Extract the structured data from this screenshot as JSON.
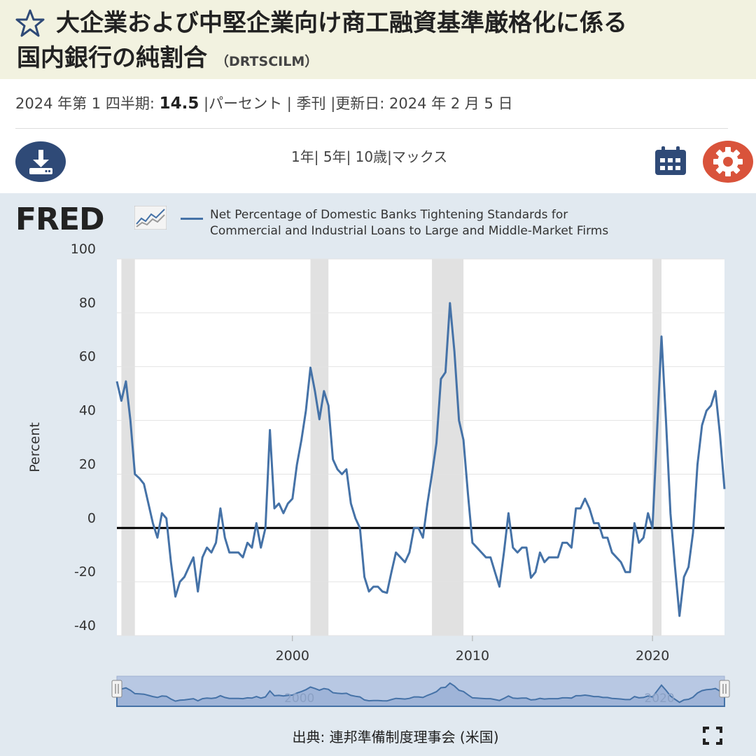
{
  "header": {
    "title_line1": "大企業および中堅企業向け商工融資基準厳格化に係る",
    "title_line2": "国内銀行の純割合",
    "series_code": "（DRTSCILM）",
    "star_icon": "star-outline-icon"
  },
  "meta": {
    "period": "2024 年第 1 四半期:",
    "value": "14.5",
    "rest": " |パーセント | 季刊 |更新日: 2024 年 2 月 5 日"
  },
  "toolbar": {
    "ranges": [
      "1年",
      "| 5年",
      "| 10歳",
      "|マックス"
    ],
    "download_icon": "download-icon",
    "calendar_icon": "calendar-icon",
    "settings_icon": "gear-icon"
  },
  "brand": {
    "logo": "FRED"
  },
  "footer": {
    "source": "出典: 連邦準備制度理事会 (米国)",
    "fullscreen_icon": "fullscreen-icon"
  },
  "colors": {
    "series": "#4572a7",
    "recession": "#e1e1e1",
    "panel": "#e1e9f0",
    "header": "#f2f2e0"
  },
  "chart_data": {
    "type": "line",
    "title": "",
    "legend": [
      "Net Percentage of Domestic Banks Tightening Standards for",
      "Commercial and Industrial Loans to Large and Middle-Market Firms"
    ],
    "ylabel": "Percent",
    "xlabel": "",
    "ylim": [
      -40,
      100
    ],
    "yticks": [
      100,
      80,
      60,
      40,
      20,
      0,
      -20,
      -40
    ],
    "xticks": [
      "2000",
      "2010",
      "2020"
    ],
    "xrange": [
      "1990Q2",
      "2024Q1"
    ],
    "zero_line": true,
    "recessions": [
      [
        "1990Q3",
        "1991Q1"
      ],
      [
        "2001Q1",
        "2001Q4"
      ],
      [
        "2007Q4",
        "2009Q2"
      ],
      [
        "2020Q1",
        "2020Q2"
      ]
    ],
    "series": [
      {
        "name": "Net Percentage of Domestic Banks Tightening Standards for Commercial and Industrial Loans to Large and Middle-Market Firms",
        "x": [
          "1990Q2",
          "1990Q3",
          "1990Q4",
          "1991Q1",
          "1991Q2",
          "1991Q3",
          "1991Q4",
          "1992Q1",
          "1992Q2",
          "1992Q3",
          "1992Q4",
          "1993Q1",
          "1993Q2",
          "1993Q3",
          "1993Q4",
          "1994Q1",
          "1994Q2",
          "1994Q3",
          "1994Q4",
          "1995Q1",
          "1995Q2",
          "1995Q3",
          "1995Q4",
          "1996Q1",
          "1996Q2",
          "1996Q3",
          "1996Q4",
          "1997Q1",
          "1997Q2",
          "1997Q3",
          "1997Q4",
          "1998Q1",
          "1998Q2",
          "1998Q3",
          "1998Q4",
          "1999Q1",
          "1999Q2",
          "1999Q3",
          "1999Q4",
          "2000Q1",
          "2000Q2",
          "2000Q3",
          "2000Q4",
          "2001Q1",
          "2001Q2",
          "2001Q3",
          "2001Q4",
          "2002Q1",
          "2002Q2",
          "2002Q3",
          "2002Q4",
          "2003Q1",
          "2003Q2",
          "2003Q3",
          "2003Q4",
          "2004Q1",
          "2004Q2",
          "2004Q3",
          "2004Q4",
          "2005Q1",
          "2005Q2",
          "2005Q3",
          "2005Q4",
          "2006Q1",
          "2006Q2",
          "2006Q3",
          "2006Q4",
          "2007Q1",
          "2007Q2",
          "2007Q3",
          "2007Q4",
          "2008Q1",
          "2008Q2",
          "2008Q3",
          "2008Q4",
          "2009Q1",
          "2009Q2",
          "2009Q3",
          "2009Q4",
          "2010Q1",
          "2010Q2",
          "2010Q3",
          "2010Q4",
          "2011Q1",
          "2011Q2",
          "2011Q3",
          "2011Q4",
          "2012Q1",
          "2012Q2",
          "2012Q3",
          "2012Q4",
          "2013Q1",
          "2013Q2",
          "2013Q3",
          "2013Q4",
          "2014Q1",
          "2014Q2",
          "2014Q3",
          "2014Q4",
          "2015Q1",
          "2015Q2",
          "2015Q3",
          "2015Q4",
          "2016Q1",
          "2016Q2",
          "2016Q3",
          "2016Q4",
          "2017Q1",
          "2017Q2",
          "2017Q3",
          "2017Q4",
          "2018Q1",
          "2018Q2",
          "2018Q3",
          "2018Q4",
          "2019Q1",
          "2019Q2",
          "2019Q3",
          "2019Q4",
          "2020Q1",
          "2020Q2",
          "2020Q3",
          "2020Q4",
          "2021Q1",
          "2021Q2",
          "2021Q3",
          "2021Q4",
          "2022Q1",
          "2022Q2",
          "2022Q3",
          "2022Q4",
          "2023Q1",
          "2023Q2",
          "2023Q3",
          "2023Q4",
          "2024Q1"
        ],
        "values": [
          54.5,
          47.3,
          54.5,
          40.0,
          20.0,
          18.5,
          16.4,
          9.1,
          1.8,
          -3.6,
          5.5,
          3.6,
          -12.7,
          -25.5,
          -20.0,
          -18.2,
          -14.5,
          -10.9,
          -23.6,
          -10.9,
          -7.3,
          -9.1,
          -5.5,
          7.3,
          -3.6,
          -9.1,
          -9.1,
          -9.1,
          -10.9,
          -5.5,
          -7.3,
          1.8,
          -7.3,
          0.0,
          36.4,
          7.3,
          9.1,
          5.5,
          9.1,
          10.9,
          23.6,
          32.7,
          43.6,
          59.6,
          50.9,
          40.4,
          50.9,
          45.5,
          25.5,
          21.8,
          20.0,
          21.8,
          9.1,
          3.6,
          0.0,
          -18.2,
          -23.6,
          -21.8,
          -21.8,
          -23.6,
          -24.1,
          -16.4,
          -9.1,
          -10.9,
          -12.7,
          -9.1,
          0.0,
          0.0,
          -3.6,
          9.1,
          20.0,
          31.6,
          55.4,
          57.9,
          83.6,
          65.5,
          40.0,
          32.7,
          12.7,
          -5.5,
          -7.3,
          -9.1,
          -10.9,
          -10.9,
          -16.4,
          -21.8,
          -9.1,
          5.5,
          -7.3,
          -9.1,
          -7.3,
          -7.3,
          -18.5,
          -16.4,
          -9.1,
          -12.7,
          -10.9,
          -10.9,
          -10.9,
          -5.5,
          -5.5,
          -7.3,
          7.3,
          7.3,
          10.9,
          7.3,
          1.8,
          1.8,
          -3.6,
          -3.6,
          -9.1,
          -10.9,
          -12.7,
          -16.4,
          -16.4,
          1.8,
          -5.5,
          -3.6,
          5.5,
          0.0,
          35.6,
          71.2,
          40.0,
          5.5,
          -14.5,
          -32.7,
          -18.2,
          -14.5,
          -1.8,
          23.6,
          38.2,
          43.6,
          45.5,
          50.9,
          34.5,
          14.5
        ]
      }
    ]
  }
}
